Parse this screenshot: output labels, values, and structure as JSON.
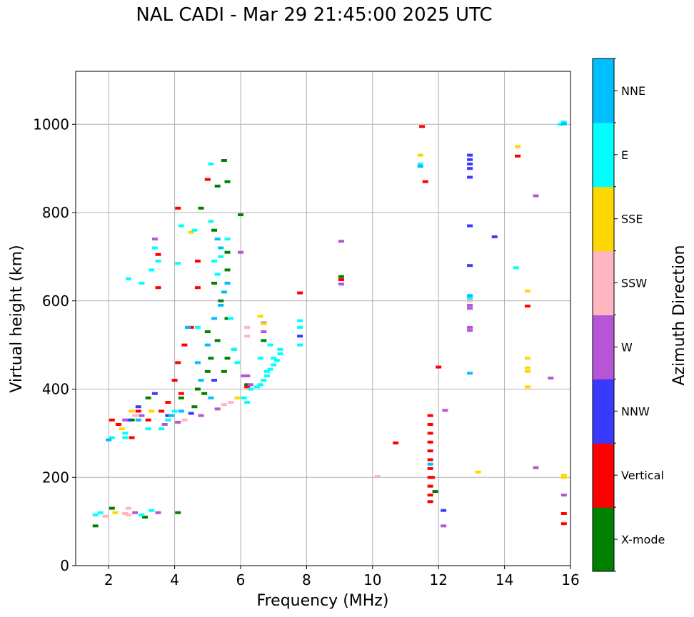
{
  "chart_data": {
    "type": "scatter",
    "title": "NAL CADI - Mar 29 21:45:00 2025 UTC",
    "xlabel": "Frequency (MHz)",
    "ylabel": "Virtual height (km)",
    "xlim": [
      1,
      16
    ],
    "ylim": [
      0,
      1120
    ],
    "xticks": [
      2,
      4,
      6,
      8,
      10,
      12,
      14,
      16
    ],
    "yticks": [
      0,
      200,
      400,
      600,
      800,
      1000
    ],
    "grid": true,
    "colorbar": {
      "label": "Azimuth Direction",
      "categories": [
        {
          "name": "X-mode",
          "color": "#008000"
        },
        {
          "name": "Vertical",
          "color": "#ff0000"
        },
        {
          "name": "NNW",
          "color": "#3a3aff"
        },
        {
          "name": "W",
          "color": "#b656d6"
        },
        {
          "name": "SSW",
          "color": "#ffb6c1"
        },
        {
          "name": "SSE",
          "color": "#ffd700"
        },
        {
          "name": "E",
          "color": "#00ffff"
        },
        {
          "name": "NNE",
          "color": "#00bfff"
        }
      ]
    },
    "series": [
      {
        "name": "X-mode",
        "points": [
          [
            1.6,
            90
          ],
          [
            2.1,
            130
          ],
          [
            3.1,
            110
          ],
          [
            4.1,
            120
          ],
          [
            5.5,
            918
          ],
          [
            5.6,
            870
          ],
          [
            5.3,
            860
          ],
          [
            4.8,
            810
          ],
          [
            5.2,
            760
          ],
          [
            5.6,
            710
          ],
          [
            5.6,
            670
          ],
          [
            5.2,
            640
          ],
          [
            5.4,
            600
          ],
          [
            5.6,
            560
          ],
          [
            5.0,
            530
          ],
          [
            5.3,
            510
          ],
          [
            5.1,
            470
          ],
          [
            5.6,
            470
          ],
          [
            5.8,
            490
          ],
          [
            5.0,
            440
          ],
          [
            4.7,
            400
          ],
          [
            4.2,
            380
          ],
          [
            4.6,
            360
          ],
          [
            3.2,
            380
          ],
          [
            2.7,
            330
          ],
          [
            6.0,
            795
          ],
          [
            6.2,
            410
          ],
          [
            6.7,
            510
          ],
          [
            9.05,
            655
          ],
          [
            11.9,
            168
          ],
          [
            4.9,
            390
          ],
          [
            5.5,
            440
          ]
        ]
      },
      {
        "name": "Vertical",
        "points": [
          [
            2.1,
            330
          ],
          [
            2.7,
            290
          ],
          [
            3.2,
            330
          ],
          [
            3.6,
            350
          ],
          [
            4.0,
            420
          ],
          [
            4.1,
            460
          ],
          [
            4.3,
            500
          ],
          [
            4.5,
            540
          ],
          [
            4.7,
            630
          ],
          [
            4.7,
            690
          ],
          [
            4.1,
            810
          ],
          [
            3.5,
            630
          ],
          [
            3.5,
            705
          ],
          [
            4.2,
            390
          ],
          [
            3.8,
            370
          ],
          [
            2.9,
            350
          ],
          [
            2.3,
            320
          ],
          [
            6.2,
            405
          ],
          [
            7.8,
            618
          ],
          [
            9.05,
            648
          ],
          [
            10.7,
            278
          ],
          [
            11.5,
            995
          ],
          [
            11.6,
            870
          ],
          [
            11.75,
            340
          ],
          [
            11.75,
            320
          ],
          [
            11.75,
            300
          ],
          [
            11.75,
            280
          ],
          [
            11.75,
            260
          ],
          [
            11.75,
            240
          ],
          [
            11.75,
            220
          ],
          [
            11.75,
            200
          ],
          [
            11.75,
            180
          ],
          [
            11.75,
            160
          ],
          [
            11.75,
            145
          ],
          [
            11.8,
            200
          ],
          [
            12.0,
            450
          ],
          [
            14.4,
            928
          ],
          [
            14.7,
            588
          ],
          [
            15.8,
            118
          ],
          [
            15.8,
            95
          ],
          [
            5.0,
            875
          ],
          [
            4.4,
            540
          ]
        ]
      },
      {
        "name": "NNW",
        "points": [
          [
            2.9,
            360
          ],
          [
            3.4,
            390
          ],
          [
            4.5,
            345
          ],
          [
            5.2,
            420
          ],
          [
            2.6,
            330
          ],
          [
            12.15,
            125
          ],
          [
            12.95,
            930
          ],
          [
            12.95,
            920
          ],
          [
            12.95,
            910
          ],
          [
            12.95,
            900
          ],
          [
            12.95,
            880
          ],
          [
            12.95,
            770
          ],
          [
            12.95,
            680
          ],
          [
            13.7,
            745
          ],
          [
            7.8,
            520
          ],
          [
            3.8,
            340
          ]
        ]
      },
      {
        "name": "W",
        "points": [
          [
            2.5,
            330
          ],
          [
            3.0,
            340
          ],
          [
            3.5,
            120
          ],
          [
            3.7,
            320
          ],
          [
            4.1,
            325
          ],
          [
            4.8,
            340
          ],
          [
            5.3,
            355
          ],
          [
            6.1,
            430
          ],
          [
            6.2,
            430
          ],
          [
            6.3,
            410
          ],
          [
            6.7,
            530
          ],
          [
            6.7,
            550
          ],
          [
            6.0,
            710
          ],
          [
            3.4,
            740
          ],
          [
            9.05,
            735
          ],
          [
            9.05,
            638
          ],
          [
            12.15,
            90
          ],
          [
            12.2,
            352
          ],
          [
            12.95,
            590
          ],
          [
            12.95,
            583
          ],
          [
            12.95,
            540
          ],
          [
            12.95,
            533
          ],
          [
            14.95,
            838
          ],
          [
            15.4,
            425
          ],
          [
            14.95,
            222
          ],
          [
            15.8,
            160
          ],
          [
            2.8,
            120
          ]
        ]
      },
      {
        "name": "SSW",
        "points": [
          [
            1.9,
            112
          ],
          [
            2.5,
            118
          ],
          [
            2.6,
            130
          ],
          [
            2.8,
            340
          ],
          [
            2.6,
            115
          ],
          [
            4.3,
            330
          ],
          [
            5.5,
            365
          ],
          [
            5.7,
            370
          ],
          [
            6.2,
            520
          ],
          [
            6.2,
            540
          ],
          [
            10.15,
            202
          ],
          [
            12.95,
            600
          ]
        ]
      },
      {
        "name": "SSE",
        "points": [
          [
            2.2,
            120
          ],
          [
            2.4,
            310
          ],
          [
            2.7,
            350
          ],
          [
            3.3,
            350
          ],
          [
            4.5,
            755
          ],
          [
            5.9,
            380
          ],
          [
            6.6,
            565
          ],
          [
            6.7,
            548
          ],
          [
            11.45,
            930
          ],
          [
            13.2,
            212
          ],
          [
            14.4,
            950
          ],
          [
            14.7,
            622
          ],
          [
            14.7,
            470
          ],
          [
            14.7,
            448
          ],
          [
            14.7,
            440
          ],
          [
            14.7,
            405
          ],
          [
            15.8,
            205
          ],
          [
            15.8,
            200
          ]
        ]
      },
      {
        "name": "E",
        "points": [
          [
            1.6,
            115
          ],
          [
            1.75,
            120
          ],
          [
            2.1,
            290
          ],
          [
            2.5,
            300
          ],
          [
            2.6,
            650
          ],
          [
            3.0,
            640
          ],
          [
            3.3,
            670
          ],
          [
            3.4,
            720
          ],
          [
            3.5,
            690
          ],
          [
            3.6,
            310
          ],
          [
            3.8,
            330
          ],
          [
            4.1,
            685
          ],
          [
            4.2,
            770
          ],
          [
            4.6,
            760
          ],
          [
            4.7,
            540
          ],
          [
            5.1,
            780
          ],
          [
            5.1,
            910
          ],
          [
            5.2,
            690
          ],
          [
            5.3,
            660
          ],
          [
            5.4,
            700
          ],
          [
            5.6,
            740
          ],
          [
            5.7,
            560
          ],
          [
            5.8,
            490
          ],
          [
            5.9,
            460
          ],
          [
            6.1,
            380
          ],
          [
            6.3,
            400
          ],
          [
            6.5,
            405
          ],
          [
            6.6,
            410
          ],
          [
            6.7,
            420
          ],
          [
            6.8,
            430
          ],
          [
            6.9,
            445
          ],
          [
            7.0,
            455
          ],
          [
            7.1,
            465
          ],
          [
            7.2,
            480
          ],
          [
            7.2,
            490
          ],
          [
            7.0,
            470
          ],
          [
            6.8,
            440
          ],
          [
            6.6,
            470
          ],
          [
            6.9,
            500
          ],
          [
            7.8,
            500
          ],
          [
            7.8,
            540
          ],
          [
            7.8,
            555
          ],
          [
            6.2,
            370
          ],
          [
            4.0,
            350
          ],
          [
            3.2,
            310
          ],
          [
            2.5,
            290
          ],
          [
            11.45,
            910
          ],
          [
            12.95,
            606
          ],
          [
            14.35,
            675
          ],
          [
            15.8,
            1005
          ],
          [
            15.7,
            1000
          ],
          [
            3.0,
            115
          ],
          [
            3.3,
            125
          ]
        ]
      },
      {
        "name": "NNE",
        "points": [
          [
            2.0,
            285
          ],
          [
            2.9,
            330
          ],
          [
            3.9,
            340
          ],
          [
            4.2,
            350
          ],
          [
            4.8,
            420
          ],
          [
            5.0,
            500
          ],
          [
            5.2,
            560
          ],
          [
            5.4,
            590
          ],
          [
            5.5,
            620
          ],
          [
            5.6,
            640
          ],
          [
            5.4,
            720
          ],
          [
            5.3,
            740
          ],
          [
            5.1,
            380
          ],
          [
            4.7,
            460
          ],
          [
            4.4,
            540
          ],
          [
            11.45,
            905
          ],
          [
            11.75,
            230
          ],
          [
            12.95,
            612
          ],
          [
            12.95,
            436
          ],
          [
            15.8,
            1001
          ]
        ]
      }
    ]
  }
}
